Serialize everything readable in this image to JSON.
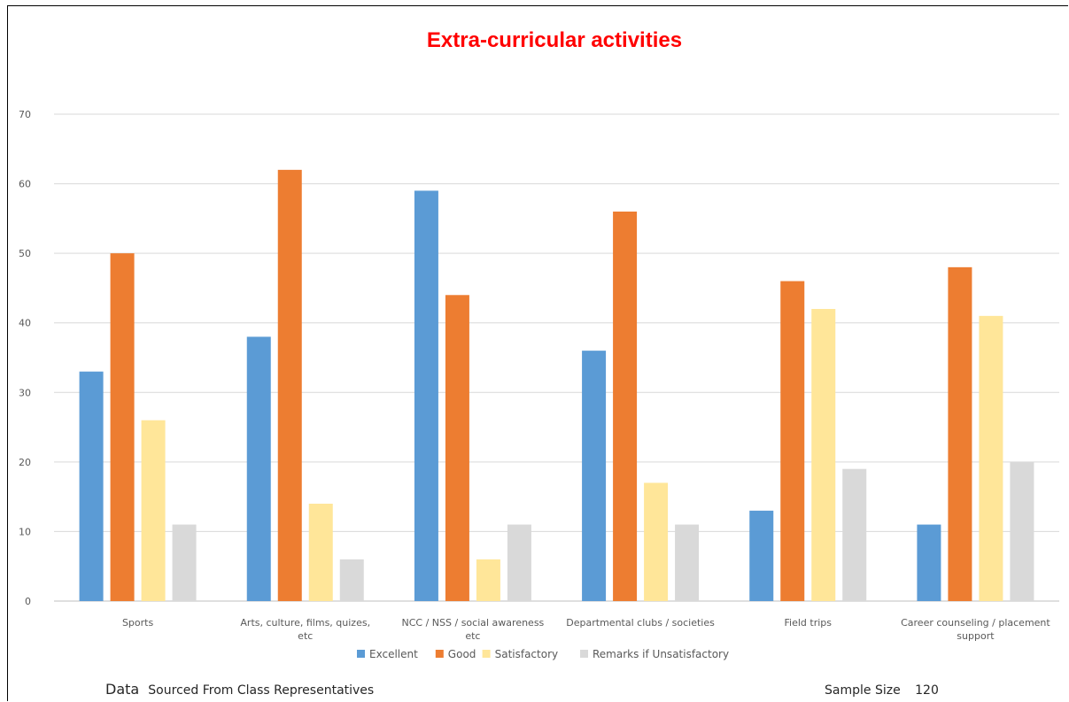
{
  "chart_data": {
    "type": "bar",
    "title": "Extra-curricular activities",
    "categories": [
      "Sports",
      "Arts, culture, films, quizes, etc",
      "NCC / NSS / social awareness etc",
      "Departmental clubs / societies",
      "Field trips",
      "Career counseling / placement support"
    ],
    "series": [
      {
        "name": "Excellent",
        "color": "#5b9bd5",
        "values": [
          33,
          38,
          59,
          36,
          13,
          11
        ]
      },
      {
        "name": "Good",
        "color": "#ed7d31",
        "values": [
          50,
          62,
          44,
          56,
          46,
          48
        ]
      },
      {
        "name": "Satisfactory",
        "color": "#ffe699",
        "values": [
          26,
          14,
          6,
          17,
          42,
          41
        ]
      },
      {
        "name": "Remarks if Unsatisfactory",
        "color": "#d9d9d9",
        "values": [
          11,
          6,
          11,
          11,
          19,
          20
        ]
      }
    ],
    "ylim": [
      0,
      70
    ],
    "yticks": [
      0,
      10,
      20,
      30,
      40,
      50,
      60,
      70
    ],
    "grid": true,
    "legend": "bottom",
    "xlabel": "",
    "ylabel": ""
  },
  "footer": {
    "data_word": "Data",
    "source_text": "Sourced From Class Representatives",
    "sample_label": "Sample Size",
    "sample_value": "120"
  }
}
